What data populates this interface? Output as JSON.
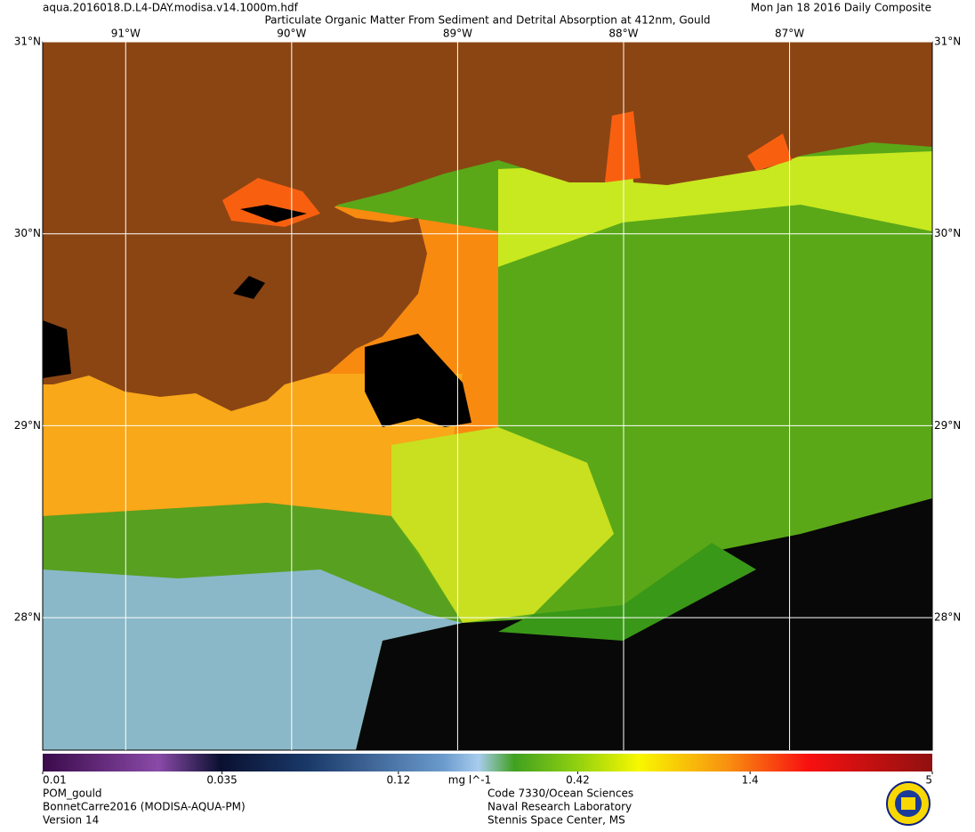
{
  "header": {
    "file": "aqua.2016018.D.L4-DAY.modisa.v14.1000m.hdf",
    "title": "Particulate Organic Matter From Sediment and Detrital Absorption at 412nm, Gould",
    "date": "Mon Jan 18 2016 Daily Composite"
  },
  "map": {
    "lonlim": [
      -91.5,
      -86.14
    ],
    "latlim": [
      27.31,
      31
    ],
    "lat_ticks": [
      {
        "value": 31,
        "label": "31°N"
      },
      {
        "value": 30,
        "label": "30°N"
      },
      {
        "value": 29,
        "label": "29°N"
      },
      {
        "value": 28,
        "label": "28°N"
      }
    ],
    "lon_ticks": [
      {
        "value": -91,
        "label": "91°W"
      },
      {
        "value": -90,
        "label": "90°W"
      },
      {
        "value": -89,
        "label": "89°W"
      },
      {
        "value": -88,
        "label": "88°W"
      },
      {
        "value": -87,
        "label": "87°W"
      }
    ]
  },
  "colorbar": {
    "scale": "log",
    "range": [
      0.01,
      5
    ],
    "ticks": [
      0.01,
      0.035,
      0.12,
      0.42,
      1.4,
      5
    ],
    "unit": "mg l^-1"
  },
  "footer": {
    "left": [
      "POM_gould",
      "BonnetCarre2016 (MODISA-AQUA-PM)",
      "Version 14"
    ],
    "right": [
      "Code 7330/Ocean Sciences",
      "Naval Research Laboratory",
      "Stennis Space Center, MS"
    ]
  }
}
